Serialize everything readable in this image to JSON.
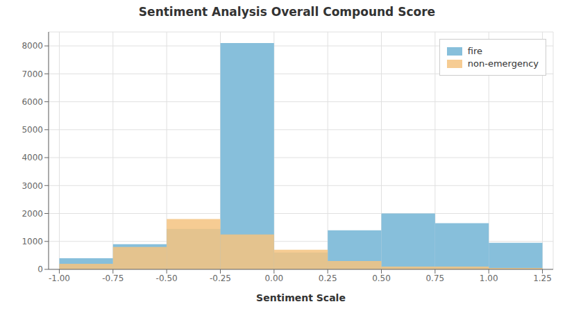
{
  "chart_data": {
    "type": "histogram",
    "title": "Sentiment Analysis Overall Compound Score",
    "xlabel": "Sentiment Scale",
    "bins": [
      -1.0,
      -0.75,
      -0.5,
      -0.25,
      0.0,
      0.25,
      0.5,
      0.75,
      1.0,
      1.25
    ],
    "series": [
      {
        "name": "fire",
        "color": "#87BFDB",
        "values": [
          400,
          900,
          1450,
          8100,
          600,
          1400,
          2000,
          1650,
          950
        ]
      },
      {
        "name": "non-emergency",
        "color": "#F5C380",
        "values": [
          200,
          800,
          1800,
          1250,
          700,
          300,
          100,
          100,
          50
        ]
      }
    ],
    "xlim": [
      -1.05,
      1.3
    ],
    "ylim": [
      0,
      8500
    ],
    "xticks": [
      {
        "value": -1.0,
        "label": "-1.00"
      },
      {
        "value": -0.75,
        "label": "-0.75"
      },
      {
        "value": -0.5,
        "label": "-0.50"
      },
      {
        "value": -0.25,
        "label": "-0.25"
      },
      {
        "value": 0.0,
        "label": "0.00"
      },
      {
        "value": 0.25,
        "label": "0.25"
      },
      {
        "value": 0.5,
        "label": "0.50"
      },
      {
        "value": 0.75,
        "label": "0.75"
      },
      {
        "value": 1.0,
        "label": "1.00"
      },
      {
        "value": 1.25,
        "label": "1.25"
      }
    ],
    "yticks": [
      0,
      1000,
      2000,
      3000,
      4000,
      5000,
      6000,
      7000,
      8000
    ],
    "grid": true,
    "legend": "upper right",
    "stacked": false
  }
}
